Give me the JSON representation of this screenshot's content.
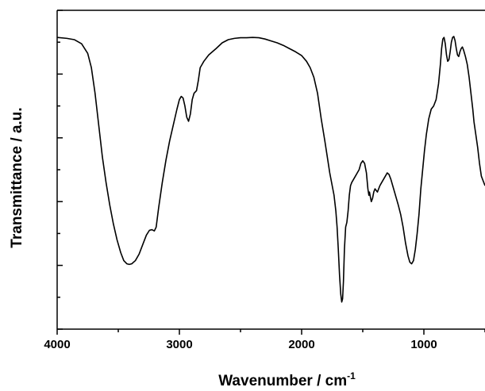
{
  "chart_data": {
    "type": "line",
    "xlabel_main": "Wavenumber  /  cm",
    "xlabel_superscript": "-1",
    "ylabel": "Transmittance  /  a.u.",
    "x_reversed": true,
    "xlim": [
      4000,
      500
    ],
    "ylim": [
      0,
      1
    ],
    "y_tick_labels_shown": false,
    "x_ticks": [
      {
        "value": 4000,
        "label": "4000"
      },
      {
        "value": 3000,
        "label": "3000"
      },
      {
        "value": 2000,
        "label": "2000"
      },
      {
        "value": 1000,
        "label": "1000"
      }
    ],
    "grid": false,
    "legend": "none",
    "line_color": "#000000",
    "series": [
      {
        "points": [
          [
            4000,
            0.915
          ],
          [
            3920,
            0.912
          ],
          [
            3860,
            0.908
          ],
          [
            3800,
            0.895
          ],
          [
            3750,
            0.865
          ],
          [
            3720,
            0.82
          ],
          [
            3690,
            0.74
          ],
          [
            3660,
            0.64
          ],
          [
            3630,
            0.54
          ],
          [
            3600,
            0.46
          ],
          [
            3570,
            0.39
          ],
          [
            3540,
            0.33
          ],
          [
            3510,
            0.28
          ],
          [
            3480,
            0.24
          ],
          [
            3455,
            0.215
          ],
          [
            3430,
            0.205
          ],
          [
            3410,
            0.203
          ],
          [
            3390,
            0.205
          ],
          [
            3360,
            0.215
          ],
          [
            3330,
            0.235
          ],
          [
            3300,
            0.265
          ],
          [
            3270,
            0.295
          ],
          [
            3245,
            0.31
          ],
          [
            3225,
            0.312
          ],
          [
            3205,
            0.308
          ],
          [
            3190,
            0.32
          ],
          [
            3170,
            0.38
          ],
          [
            3140,
            0.46
          ],
          [
            3110,
            0.53
          ],
          [
            3080,
            0.59
          ],
          [
            3050,
            0.64
          ],
          [
            3020,
            0.69
          ],
          [
            3000,
            0.72
          ],
          [
            2985,
            0.73
          ],
          [
            2970,
            0.725
          ],
          [
            2955,
            0.7
          ],
          [
            2940,
            0.665
          ],
          [
            2925,
            0.652
          ],
          [
            2910,
            0.675
          ],
          [
            2895,
            0.72
          ],
          [
            2880,
            0.74
          ],
          [
            2860,
            0.748
          ],
          [
            2845,
            0.78
          ],
          [
            2830,
            0.82
          ],
          [
            2800,
            0.84
          ],
          [
            2760,
            0.86
          ],
          [
            2700,
            0.88
          ],
          [
            2650,
            0.898
          ],
          [
            2600,
            0.908
          ],
          [
            2550,
            0.912
          ],
          [
            2500,
            0.914
          ],
          [
            2450,
            0.914
          ],
          [
            2400,
            0.915
          ],
          [
            2350,
            0.914
          ],
          [
            2300,
            0.91
          ],
          [
            2250,
            0.904
          ],
          [
            2200,
            0.898
          ],
          [
            2150,
            0.89
          ],
          [
            2100,
            0.88
          ],
          [
            2050,
            0.87
          ],
          [
            2000,
            0.858
          ],
          [
            1960,
            0.84
          ],
          [
            1930,
            0.82
          ],
          [
            1900,
            0.79
          ],
          [
            1870,
            0.74
          ],
          [
            1840,
            0.66
          ],
          [
            1810,
            0.59
          ],
          [
            1790,
            0.54
          ],
          [
            1770,
            0.49
          ],
          [
            1750,
            0.45
          ],
          [
            1735,
            0.42
          ],
          [
            1720,
            0.37
          ],
          [
            1710,
            0.32
          ],
          [
            1700,
            0.25
          ],
          [
            1690,
            0.17
          ],
          [
            1680,
            0.11
          ],
          [
            1672,
            0.085
          ],
          [
            1665,
            0.095
          ],
          [
            1658,
            0.15
          ],
          [
            1650,
            0.25
          ],
          [
            1640,
            0.32
          ],
          [
            1630,
            0.335
          ],
          [
            1620,
            0.37
          ],
          [
            1610,
            0.42
          ],
          [
            1600,
            0.45
          ],
          [
            1590,
            0.46
          ],
          [
            1575,
            0.47
          ],
          [
            1560,
            0.48
          ],
          [
            1545,
            0.49
          ],
          [
            1530,
            0.5
          ],
          [
            1515,
            0.52
          ],
          [
            1500,
            0.528
          ],
          [
            1485,
            0.52
          ],
          [
            1470,
            0.49
          ],
          [
            1458,
            0.44
          ],
          [
            1450,
            0.42
          ],
          [
            1445,
            0.43
          ],
          [
            1438,
            0.415
          ],
          [
            1430,
            0.4
          ],
          [
            1420,
            0.41
          ],
          [
            1410,
            0.43
          ],
          [
            1400,
            0.44
          ],
          [
            1390,
            0.435
          ],
          [
            1380,
            0.43
          ],
          [
            1370,
            0.44
          ],
          [
            1360,
            0.45
          ],
          [
            1345,
            0.46
          ],
          [
            1330,
            0.47
          ],
          [
            1315,
            0.48
          ],
          [
            1300,
            0.49
          ],
          [
            1285,
            0.485
          ],
          [
            1270,
            0.47
          ],
          [
            1255,
            0.45
          ],
          [
            1240,
            0.43
          ],
          [
            1225,
            0.41
          ],
          [
            1210,
            0.39
          ],
          [
            1190,
            0.36
          ],
          [
            1170,
            0.32
          ],
          [
            1150,
            0.27
          ],
          [
            1130,
            0.23
          ],
          [
            1115,
            0.21
          ],
          [
            1100,
            0.205
          ],
          [
            1085,
            0.215
          ],
          [
            1070,
            0.25
          ],
          [
            1055,
            0.3
          ],
          [
            1040,
            0.36
          ],
          [
            1025,
            0.44
          ],
          [
            1010,
            0.5
          ],
          [
            995,
            0.56
          ],
          [
            980,
            0.61
          ],
          [
            960,
            0.66
          ],
          [
            940,
            0.69
          ],
          [
            920,
            0.7
          ],
          [
            900,
            0.72
          ],
          [
            880,
            0.77
          ],
          [
            865,
            0.83
          ],
          [
            855,
            0.88
          ],
          [
            845,
            0.91
          ],
          [
            835,
            0.915
          ],
          [
            825,
            0.895
          ],
          [
            815,
            0.86
          ],
          [
            805,
            0.84
          ],
          [
            795,
            0.845
          ],
          [
            785,
            0.87
          ],
          [
            775,
            0.9
          ],
          [
            765,
            0.915
          ],
          [
            755,
            0.918
          ],
          [
            745,
            0.905
          ],
          [
            735,
            0.88
          ],
          [
            725,
            0.86
          ],
          [
            715,
            0.855
          ],
          [
            705,
            0.87
          ],
          [
            695,
            0.88
          ],
          [
            685,
            0.885
          ],
          [
            675,
            0.875
          ],
          [
            660,
            0.855
          ],
          [
            645,
            0.83
          ],
          [
            630,
            0.79
          ],
          [
            615,
            0.74
          ],
          [
            600,
            0.69
          ],
          [
            590,
            0.65
          ],
          [
            575,
            0.61
          ],
          [
            560,
            0.57
          ],
          [
            545,
            0.52
          ],
          [
            530,
            0.48
          ],
          [
            500,
            0.45
          ]
        ]
      }
    ]
  }
}
